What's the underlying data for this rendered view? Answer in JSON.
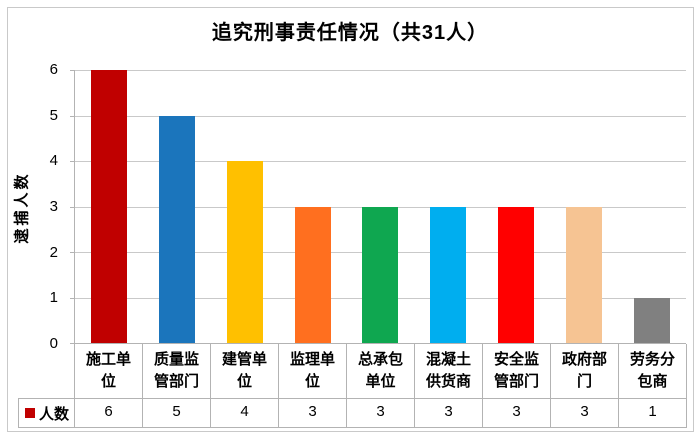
{
  "chart_data": {
    "type": "bar",
    "title": "追究刑事责任情况（共31人）",
    "ylabel": "逮捕人数",
    "xlabel": "",
    "ylim": [
      0,
      6
    ],
    "yticks": [
      0,
      1,
      2,
      3,
      4,
      5,
      6
    ],
    "grid": "horizontal",
    "data_table": true,
    "legend_position": "bottom-left-of-data-table",
    "categories": [
      "施工单位",
      "质量监管部门",
      "建管单位",
      "监理单位",
      "总承包单位",
      "混凝土供货商",
      "安全监管部门",
      "政府部门",
      "劳务分包商"
    ],
    "series": [
      {
        "name": "人数",
        "values": [
          6,
          5,
          4,
          3,
          3,
          3,
          3,
          3,
          1
        ]
      }
    ],
    "bar_colors": [
      "#C00000",
      "#1B75BC",
      "#FFC000",
      "#FF6F1F",
      "#0FA750",
      "#00AEEF",
      "#FF0000",
      "#F6C493",
      "#808080"
    ],
    "legend": {
      "label": "人数",
      "marker_color": "#C00000"
    }
  },
  "colors": {
    "gridline": "#C9C9C9",
    "axis_border": "#B3B3B3",
    "frame_border": "#C9C9C9",
    "text": "#000000",
    "background": "#FFFFFF"
  }
}
